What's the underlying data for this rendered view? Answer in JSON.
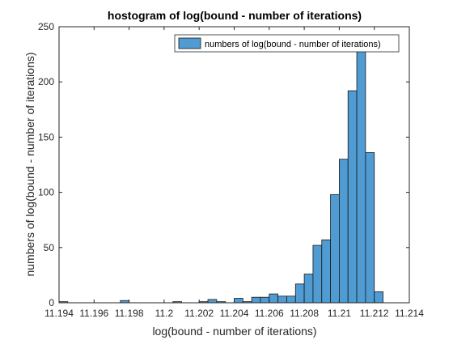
{
  "chart_data": {
    "type": "bar",
    "subtype": "histogram",
    "title": "hostogram of log(bound - number of iterations)",
    "xlabel": "log(bound - number of iterations)",
    "ylabel": "numbers of log(bound - number of iterations)",
    "xlim": [
      11.194,
      11.214
    ],
    "ylim": [
      0,
      250
    ],
    "xticks": [
      11.194,
      11.196,
      11.198,
      11.2,
      11.202,
      11.204,
      11.206,
      11.208,
      11.21,
      11.212,
      11.214
    ],
    "xtick_labels": [
      "11.194",
      "11.196",
      "11.198",
      "11.2",
      "11.202",
      "11.204",
      "11.206",
      "11.208",
      "11.21",
      "11.212",
      "11.214"
    ],
    "yticks": [
      0,
      50,
      100,
      150,
      200,
      250
    ],
    "ytick_labels": [
      "0",
      "50",
      "100",
      "150",
      "200",
      "250"
    ],
    "grid": false,
    "legend_position": "top-right",
    "series": [
      {
        "name": "numbers of log(bound - number of iterations)",
        "color": "#4f9bd2",
        "bins": [
          {
            "x0": 11.194,
            "x1": 11.1945,
            "value": 1
          },
          {
            "x0": 11.1945,
            "x1": 11.195,
            "value": 0
          },
          {
            "x0": 11.195,
            "x1": 11.1955,
            "value": 0
          },
          {
            "x0": 11.1955,
            "x1": 11.196,
            "value": 0
          },
          {
            "x0": 11.196,
            "x1": 11.1965,
            "value": 0
          },
          {
            "x0": 11.1965,
            "x1": 11.197,
            "value": 0
          },
          {
            "x0": 11.197,
            "x1": 11.1975,
            "value": 0
          },
          {
            "x0": 11.1975,
            "x1": 11.198,
            "value": 2
          },
          {
            "x0": 11.198,
            "x1": 11.1985,
            "value": 0
          },
          {
            "x0": 11.1985,
            "x1": 11.199,
            "value": 0
          },
          {
            "x0": 11.199,
            "x1": 11.1995,
            "value": 0
          },
          {
            "x0": 11.1995,
            "x1": 11.2,
            "value": 0
          },
          {
            "x0": 11.2,
            "x1": 11.2005,
            "value": 0
          },
          {
            "x0": 11.2005,
            "x1": 11.201,
            "value": 1
          },
          {
            "x0": 11.201,
            "x1": 11.2015,
            "value": 0
          },
          {
            "x0": 11.2015,
            "x1": 11.202,
            "value": 0
          },
          {
            "x0": 11.202,
            "x1": 11.2025,
            "value": 1
          },
          {
            "x0": 11.2025,
            "x1": 11.203,
            "value": 3
          },
          {
            "x0": 11.203,
            "x1": 11.2035,
            "value": 1
          },
          {
            "x0": 11.2035,
            "x1": 11.204,
            "value": 0
          },
          {
            "x0": 11.204,
            "x1": 11.2045,
            "value": 4
          },
          {
            "x0": 11.2045,
            "x1": 11.205,
            "value": 1
          },
          {
            "x0": 11.205,
            "x1": 11.2055,
            "value": 5
          },
          {
            "x0": 11.2055,
            "x1": 11.206,
            "value": 5
          },
          {
            "x0": 11.206,
            "x1": 11.2065,
            "value": 8
          },
          {
            "x0": 11.2065,
            "x1": 11.207,
            "value": 6
          },
          {
            "x0": 11.207,
            "x1": 11.2075,
            "value": 6
          },
          {
            "x0": 11.2075,
            "x1": 11.208,
            "value": 17
          },
          {
            "x0": 11.208,
            "x1": 11.2085,
            "value": 26
          },
          {
            "x0": 11.2085,
            "x1": 11.209,
            "value": 52
          },
          {
            "x0": 11.209,
            "x1": 11.2095,
            "value": 57
          },
          {
            "x0": 11.2095,
            "x1": 11.21,
            "value": 98
          },
          {
            "x0": 11.21,
            "x1": 11.2105,
            "value": 130
          },
          {
            "x0": 11.2105,
            "x1": 11.211,
            "value": 192
          },
          {
            "x0": 11.211,
            "x1": 11.2115,
            "value": 228
          },
          {
            "x0": 11.2115,
            "x1": 11.212,
            "value": 136
          },
          {
            "x0": 11.212,
            "x1": 11.2125,
            "value": 10
          }
        ]
      }
    ]
  }
}
